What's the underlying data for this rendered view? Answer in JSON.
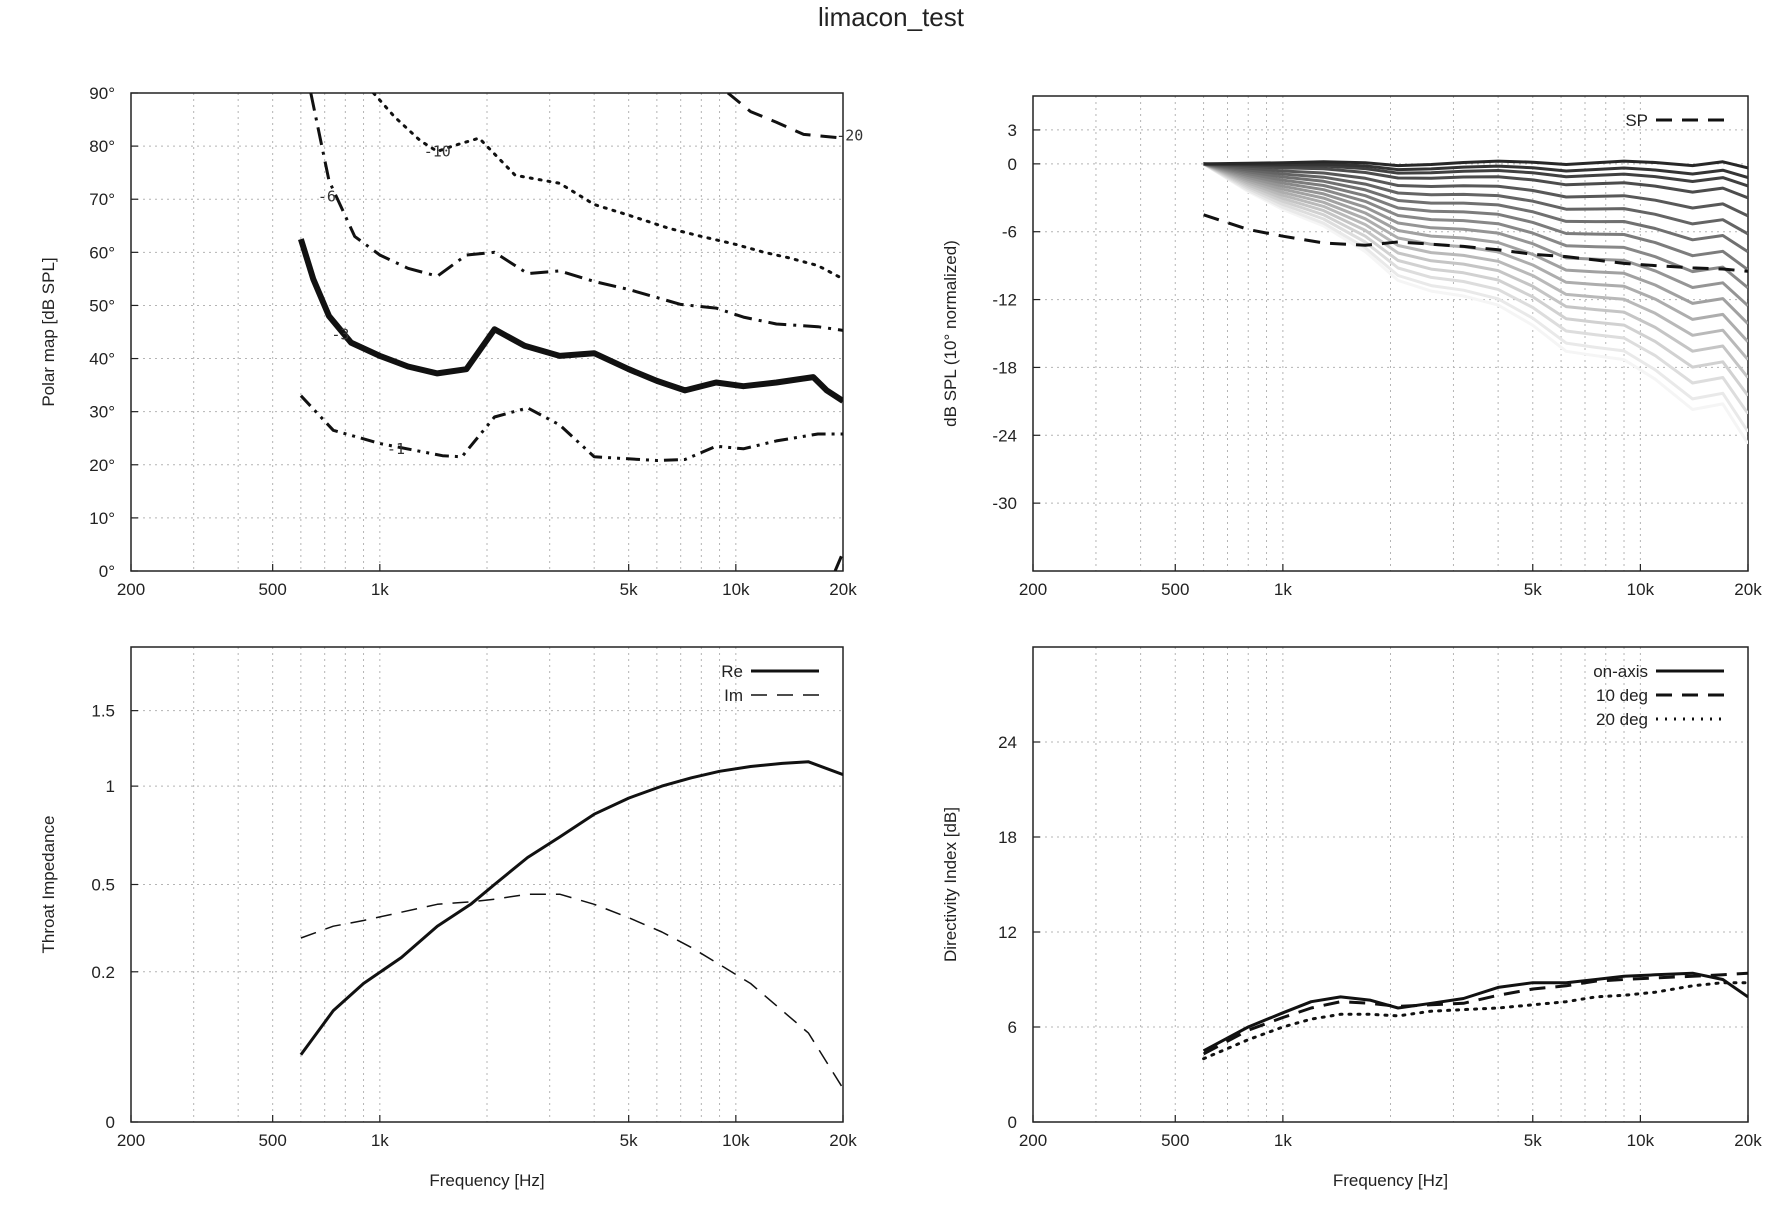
{
  "title": "limacon_test",
  "chart_data": [
    {
      "type": "contour",
      "id": "polar",
      "ylabel": "Polar map [dB SPL]",
      "xlabel": "",
      "xscale": "log",
      "xlim": [
        200,
        20000
      ],
      "ylim": [
        0,
        90
      ],
      "grid": true,
      "xticks": [
        {
          "v": 200,
          "l": "200"
        },
        {
          "v": 500,
          "l": "500"
        },
        {
          "v": 1000,
          "l": "1k"
        },
        {
          "v": 5000,
          "l": "5k"
        },
        {
          "v": 10000,
          "l": "10k"
        },
        {
          "v": 20000,
          "l": "20k"
        }
      ],
      "yticks": [
        {
          "v": 0,
          "l": "0°"
        },
        {
          "v": 10,
          "l": "10°"
        },
        {
          "v": 20,
          "l": "20°"
        },
        {
          "v": 30,
          "l": "30°"
        },
        {
          "v": 40,
          "l": "40°"
        },
        {
          "v": 50,
          "l": "50°"
        },
        {
          "v": 60,
          "l": "60°"
        },
        {
          "v": 70,
          "l": "70°"
        },
        {
          "v": 80,
          "l": "80°"
        },
        {
          "v": 90,
          "l": "90°"
        }
      ],
      "series": [
        {
          "label": "-1",
          "style": "dashdotdot",
          "width": 3,
          "x": [
            600,
            740,
            1000,
            1500,
            1700,
            2100,
            2600,
            3200,
            4000,
            6000,
            7200,
            8800,
            10500,
            13000,
            17000,
            20000
          ],
          "y": [
            33,
            26.5,
            24,
            21.7,
            21.5,
            29,
            30.7,
            27.5,
            21.5,
            20.8,
            21,
            23.5,
            23,
            24.5,
            25.8,
            25.8
          ],
          "labelAt": [
            1110,
            23
          ]
        },
        {
          "label": "-3",
          "style": "solid",
          "width": 6,
          "x": [
            600,
            650,
            720,
            830,
            1000,
            1200,
            1450,
            1750,
            2100,
            2550,
            3200,
            4000,
            5000,
            6000,
            7200,
            8800,
            10500,
            13000,
            16500,
            18000,
            20000
          ],
          "y": [
            62.5,
            55,
            48,
            43,
            40.5,
            38.5,
            37.2,
            38,
            45.5,
            42.4,
            40.5,
            41,
            38,
            35.8,
            34,
            35.5,
            34.8,
            35.5,
            36.5,
            34,
            32
          ],
          "labelAt": [
            775,
            44.5
          ]
        },
        {
          "label": "-6",
          "style": "dashdot",
          "width": 3,
          "x": [
            640,
            720,
            850,
            1000,
            1200,
            1450,
            1750,
            2100,
            2600,
            3200,
            4000,
            5000,
            7000,
            8800,
            10500,
            13000,
            17000,
            20000
          ],
          "y": [
            90,
            73.5,
            63,
            59.5,
            57,
            55.5,
            59.5,
            60,
            56,
            56.5,
            54.5,
            53,
            50.2,
            49.5,
            47.8,
            46.5,
            46,
            45.3
          ],
          "labelAt": [
            710,
            70.5
          ]
        },
        {
          "label": "-10",
          "style": "dotted",
          "width": 3,
          "x": [
            960,
            1100,
            1300,
            1450,
            1600,
            1900,
            2400,
            3200,
            4000,
            5000,
            6500,
            8000,
            10000,
            12000,
            14000,
            17000,
            20000
          ],
          "y": [
            90,
            85.5,
            81,
            79,
            80,
            81.5,
            74.5,
            73,
            69,
            67,
            64.5,
            63,
            61.5,
            60,
            59,
            57.5,
            55
          ],
          "labelAt": [
            1450,
            79
          ]
        },
        {
          "label": "-20",
          "style": "dashed",
          "width": 3,
          "x": [
            9500,
            11000,
            13000,
            15500,
            20000
          ],
          "y": [
            90,
            86.5,
            84.5,
            82.2,
            81.5
          ],
          "labelAt": [
            20900,
            82
          ]
        },
        {
          "label": "",
          "style": "dashed",
          "width": 3,
          "x": [
            19000,
            20000
          ],
          "y": [
            0,
            3.5
          ],
          "labelAt": null
        }
      ]
    },
    {
      "type": "line",
      "id": "spl",
      "ylabel": "dB SPL (10° normalized)",
      "xlabel": "",
      "xscale": "log",
      "xlim": [
        200,
        20000
      ],
      "ylim": [
        -36,
        6
      ],
      "grid": true,
      "xticks": [
        {
          "v": 200,
          "l": "200"
        },
        {
          "v": 500,
          "l": "500"
        },
        {
          "v": 1000,
          "l": "1k"
        },
        {
          "v": 5000,
          "l": "5k"
        },
        {
          "v": 10000,
          "l": "10k"
        },
        {
          "v": 20000,
          "l": "20k"
        }
      ],
      "yticks": [
        {
          "v": 3,
          "l": "3"
        },
        {
          "v": 0,
          "l": "0"
        },
        {
          "v": -6,
          "l": "-6"
        },
        {
          "v": -12,
          "l": "-12"
        },
        {
          "v": -18,
          "l": "-18"
        },
        {
          "v": -24,
          "l": "-24"
        },
        {
          "v": -30,
          "l": "-30"
        }
      ],
      "legend_position": "top-right",
      "x": [
        600,
        800,
        1000,
        1300,
        1700,
        2100,
        2600,
        3200,
        4000,
        5000,
        6200,
        7500,
        9000,
        11000,
        14000,
        17000,
        20000
      ],
      "fan_endpoints_at_20k": [
        0,
        -0.8,
        -1.5,
        -2.5,
        -4,
        -5.5,
        -7,
        -8.5,
        -10,
        -11.5,
        -13,
        -14.5,
        -16,
        -17.5,
        -19,
        -20.5,
        -22,
        -23
      ],
      "sp": {
        "name": "SP",
        "values": [
          -4.5,
          -5.8,
          -6.4,
          -7,
          -7.2,
          -6.9,
          -7.1,
          -7.3,
          -7.6,
          -8,
          -8.2,
          -8.5,
          -8.8,
          -9,
          -9.2,
          -9.3,
          -9.5
        ]
      }
    },
    {
      "type": "line",
      "id": "impedance",
      "ylabel": "Throat Impedance",
      "xlabel": "Frequency [Hz]",
      "xscale": "log",
      "xlim": [
        200,
        20000
      ],
      "ylim": [
        0,
        2
      ],
      "ymap": "sqrt",
      "grid": true,
      "xticks": [
        {
          "v": 200,
          "l": "200"
        },
        {
          "v": 500,
          "l": "500"
        },
        {
          "v": 1000,
          "l": "1k"
        },
        {
          "v": 5000,
          "l": "5k"
        },
        {
          "v": 10000,
          "l": "10k"
        },
        {
          "v": 20000,
          "l": "20k"
        }
      ],
      "yticks": [
        {
          "v": 0,
          "l": "0"
        },
        {
          "v": 0.2,
          "l": "0.2"
        },
        {
          "v": 0.5,
          "l": "0.5"
        },
        {
          "v": 1,
          "l": "1"
        },
        {
          "v": 1.5,
          "l": "1.5"
        }
      ],
      "legend_position": "top-right",
      "x": [
        600,
        740,
        900,
        1150,
        1450,
        1800,
        2100,
        2600,
        3200,
        4000,
        5000,
        6200,
        7500,
        9000,
        11000,
        13500,
        16000,
        20000
      ],
      "series": [
        {
          "name": "Re",
          "style": "solid",
          "values": [
            0.04,
            0.11,
            0.17,
            0.24,
            0.34,
            0.42,
            0.5,
            0.62,
            0.72,
            0.84,
            0.93,
            1.0,
            1.05,
            1.09,
            1.12,
            1.14,
            1.15,
            1.07
          ]
        },
        {
          "name": "Im",
          "style": "dashed",
          "values": [
            0.3,
            0.34,
            0.36,
            0.39,
            0.42,
            0.43,
            0.44,
            0.46,
            0.46,
            0.42,
            0.37,
            0.32,
            0.27,
            0.22,
            0.17,
            0.11,
            0.07,
            0.01
          ]
        }
      ]
    },
    {
      "type": "line",
      "id": "di",
      "ylabel": "Directivity Index [dB]",
      "xlabel": "Frequency [Hz]",
      "xscale": "log",
      "xlim": [
        200,
        20000
      ],
      "ylim": [
        0,
        30
      ],
      "grid": true,
      "xticks": [
        {
          "v": 200,
          "l": "200"
        },
        {
          "v": 500,
          "l": "500"
        },
        {
          "v": 1000,
          "l": "1k"
        },
        {
          "v": 5000,
          "l": "5k"
        },
        {
          "v": 10000,
          "l": "10k"
        },
        {
          "v": 20000,
          "l": "20k"
        }
      ],
      "yticks": [
        {
          "v": 0,
          "l": "0"
        },
        {
          "v": 6,
          "l": "6"
        },
        {
          "v": 12,
          "l": "12"
        },
        {
          "v": 18,
          "l": "18"
        },
        {
          "v": 24,
          "l": "24"
        }
      ],
      "legend_position": "top-right",
      "x": [
        600,
        800,
        1000,
        1200,
        1450,
        1750,
        2100,
        2600,
        3200,
        4000,
        5000,
        6200,
        7500,
        9000,
        11000,
        14000,
        17000,
        20000
      ],
      "series": [
        {
          "name": "on-axis",
          "style": "solid",
          "values": [
            4.5,
            6,
            6.9,
            7.6,
            7.9,
            7.7,
            7.2,
            7.5,
            7.8,
            8.5,
            8.8,
            8.8,
            9,
            9.2,
            9.3,
            9.4,
            9,
            7.9
          ]
        },
        {
          "name": "10 deg",
          "style": "dashed",
          "values": [
            4.3,
            5.8,
            6.6,
            7.2,
            7.6,
            7.5,
            7.3,
            7.4,
            7.5,
            8,
            8.4,
            8.6,
            8.9,
            9,
            9.1,
            9.2,
            9.3,
            9.4
          ]
        },
        {
          "name": "20 deg",
          "style": "dotted",
          "values": [
            4,
            5.2,
            6,
            6.5,
            6.8,
            6.8,
            6.7,
            7,
            7.1,
            7.2,
            7.4,
            7.6,
            7.9,
            8,
            8.2,
            8.6,
            8.8,
            8.8
          ]
        }
      ]
    }
  ]
}
